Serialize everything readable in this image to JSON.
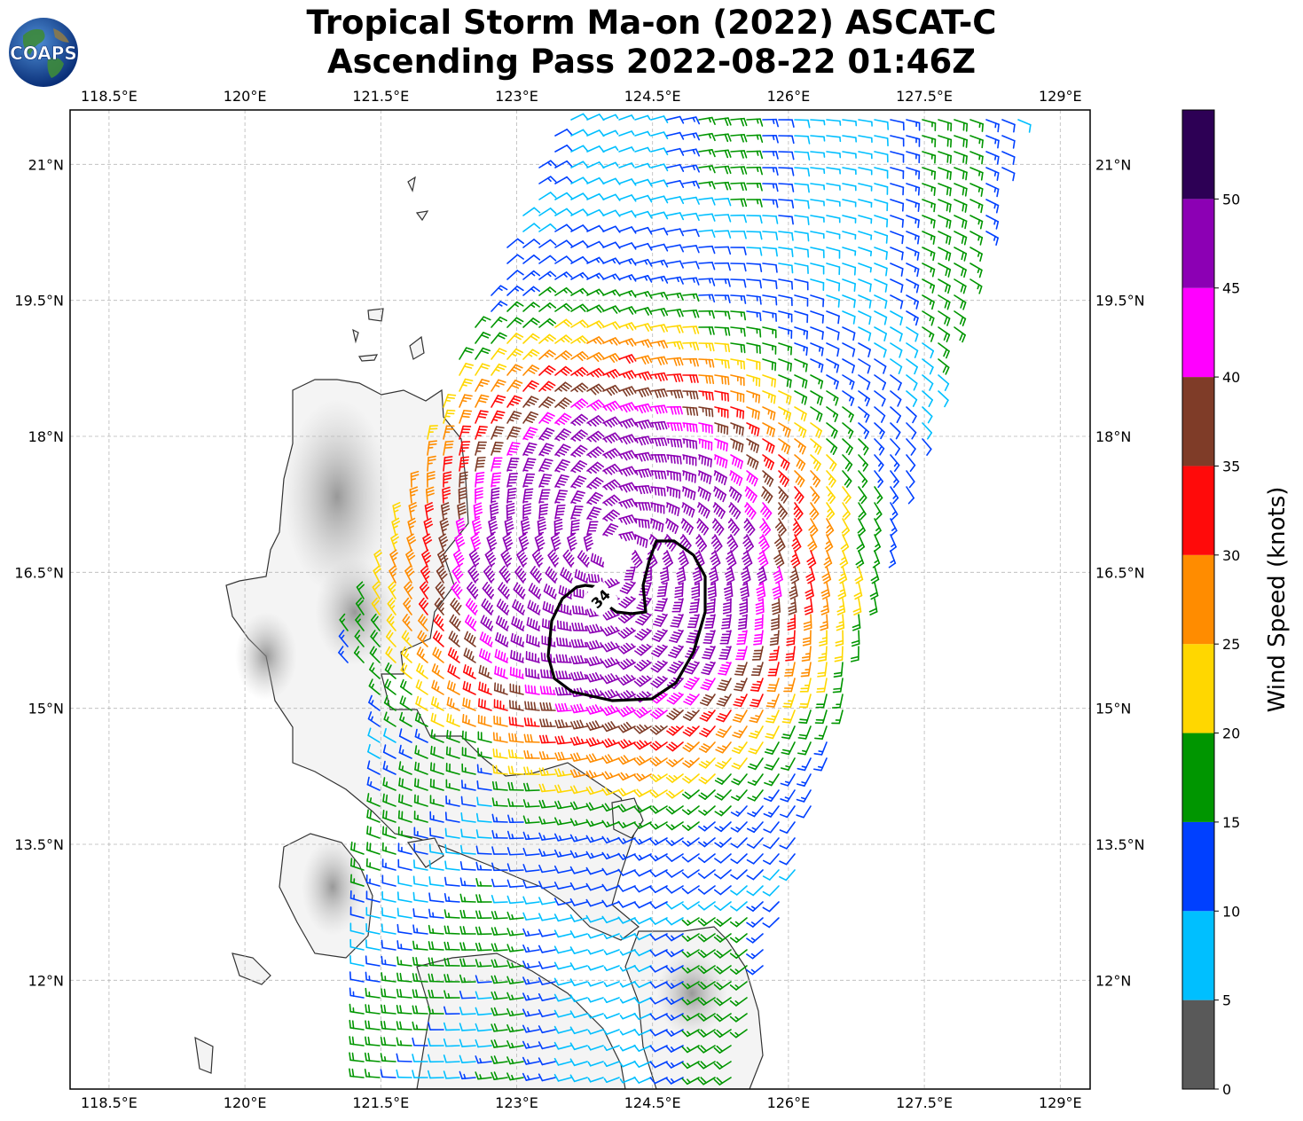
{
  "title": {
    "line1": "Tropical Storm Ma-on (2022) ASCAT-C",
    "line2": "Ascending Pass 2022-08-22 01:46Z"
  },
  "logo": {
    "text": "COAPS",
    "icon": "globe-logo-icon"
  },
  "map": {
    "lon_range": [
      118.07,
      129.33
    ],
    "lat_range": [
      10.8,
      21.6
    ],
    "lon_ticks": [
      "118.5°E",
      "120°E",
      "121.5°E",
      "123°E",
      "124.5°E",
      "126°E",
      "127.5°E",
      "129°E"
    ],
    "lon_tick_values": [
      118.5,
      120,
      121.5,
      123,
      124.5,
      126,
      127.5,
      129
    ],
    "lat_ticks": [
      "12°N",
      "13.5°N",
      "15°N",
      "16.5°N",
      "18°N",
      "19.5°N",
      "21°N"
    ],
    "lat_tick_values": [
      12,
      13.5,
      15,
      16.5,
      18,
      19.5,
      21
    ],
    "grid": true,
    "storm_center": {
      "lon": 124.1,
      "lat": 16.7
    },
    "contour_label": "34",
    "contour_color": "#000000"
  },
  "colorbar": {
    "label": "Wind Speed (knots)",
    "ticks": [
      "0",
      "5",
      "10",
      "15",
      "20",
      "25",
      "30",
      "35",
      "40",
      "45",
      "50"
    ],
    "bins": [
      {
        "from": 0,
        "to": 5,
        "color": "#595959"
      },
      {
        "from": 5,
        "to": 10,
        "color": "#00bfff"
      },
      {
        "from": 10,
        "to": 15,
        "color": "#0040ff"
      },
      {
        "from": 15,
        "to": 20,
        "color": "#009600"
      },
      {
        "from": 20,
        "to": 25,
        "color": "#ffd700"
      },
      {
        "from": 25,
        "to": 30,
        "color": "#ff8c00"
      },
      {
        "from": 30,
        "to": 35,
        "color": "#ff0a0a"
      },
      {
        "from": 35,
        "to": 40,
        "color": "#7f3c28"
      },
      {
        "from": 40,
        "to": 45,
        "color": "#ff00ff"
      },
      {
        "from": 45,
        "to": 50,
        "color": "#8c00b4"
      },
      {
        "from": 50,
        "to": 55,
        "color": "#2d0055"
      }
    ]
  }
}
